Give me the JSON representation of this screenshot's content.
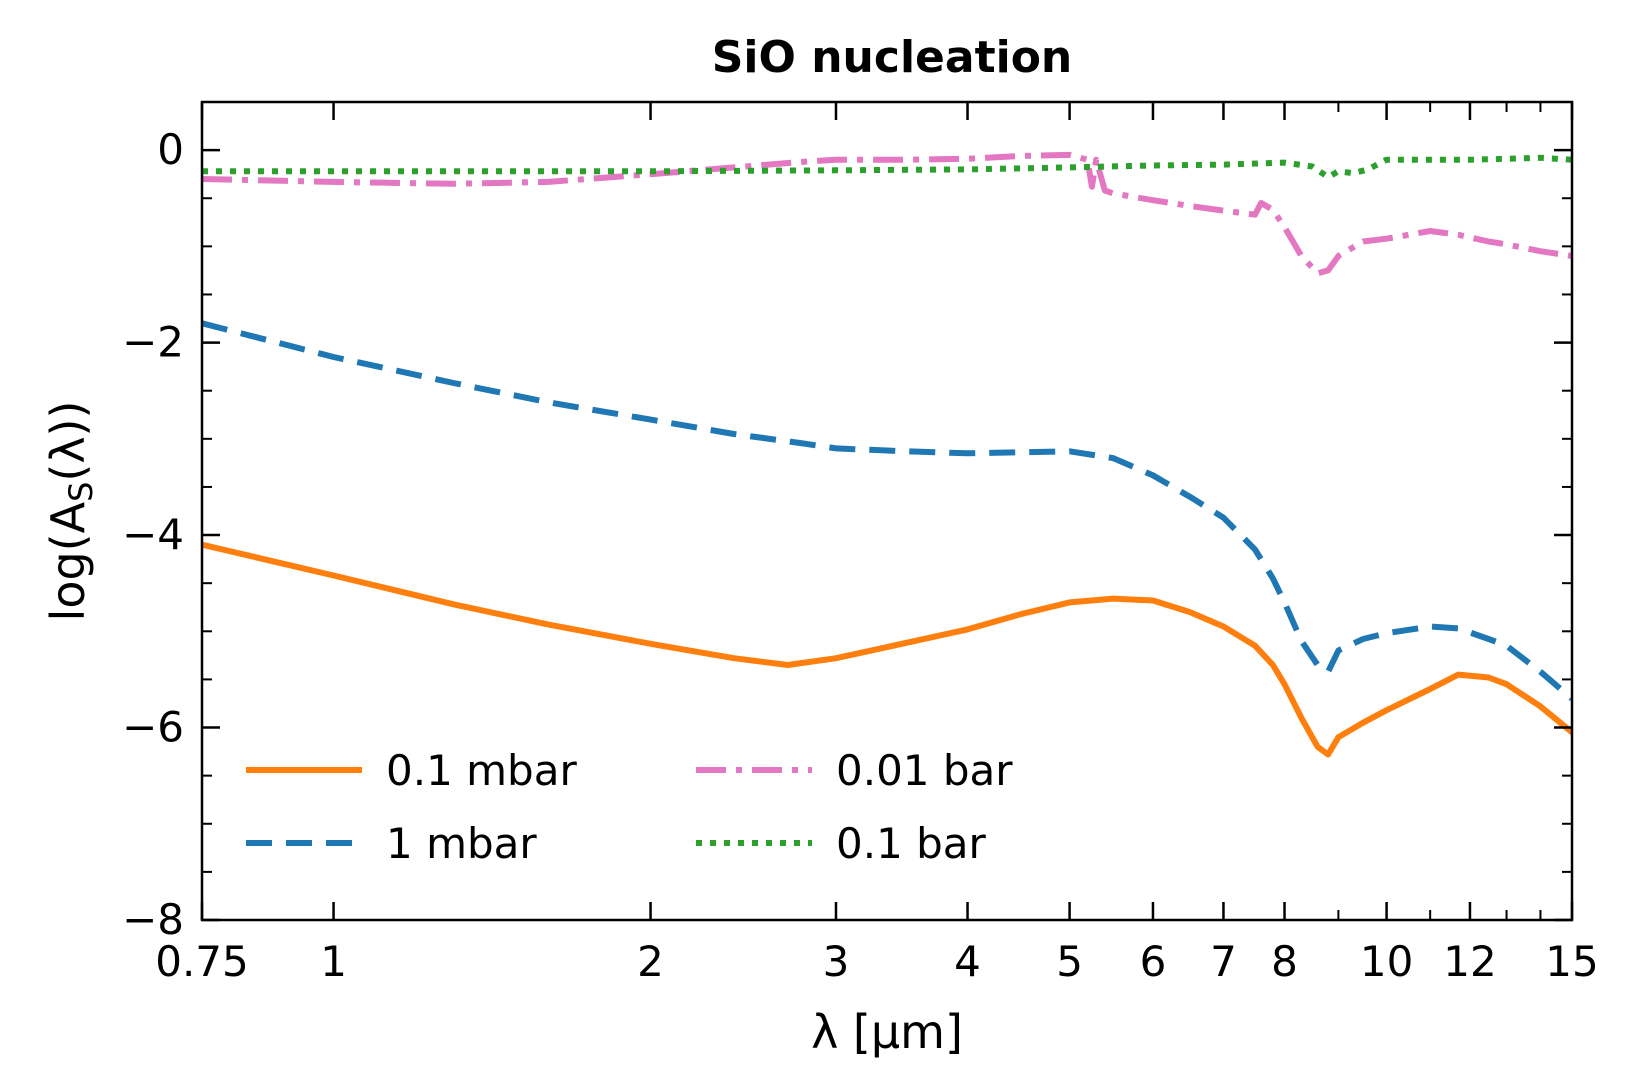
{
  "chart_data": {
    "type": "line",
    "title": "SiO nucleation",
    "xlabel": "λ [μm]",
    "ylabel": "log(A_S(λ))",
    "ylabel_parts": {
      "prefix": "log(A",
      "subscript": "S",
      "suffix": "(λ))"
    },
    "xscale": "log",
    "xlim": [
      0.75,
      15
    ],
    "ylim": [
      -8,
      0.5
    ],
    "x_ticks": [
      0.75,
      1,
      2,
      3,
      4,
      5,
      6,
      7,
      8,
      10,
      12,
      15
    ],
    "x_tick_labels": [
      "0.75",
      "1",
      "2",
      "3",
      "4",
      "5",
      "6",
      "7",
      "8",
      "10",
      "12",
      "15"
    ],
    "y_ticks": [
      -8,
      -6,
      -4,
      -2,
      0
    ],
    "y_tick_labels": [
      "−8",
      "−6",
      "−4",
      "−2",
      "0"
    ],
    "grid": false,
    "legend_position": "lower-left",
    "series": [
      {
        "name": "0.1 mbar",
        "color": "#ff7f0e",
        "style": "solid",
        "x": [
          0.75,
          1.0,
          1.3,
          1.6,
          2.0,
          2.4,
          2.7,
          3.0,
          3.5,
          4.0,
          4.5,
          5.0,
          5.5,
          6.0,
          6.5,
          7.0,
          7.5,
          7.8,
          8.0,
          8.3,
          8.6,
          8.8,
          9.0,
          9.5,
          10.0,
          11.0,
          11.7,
          12.5,
          13.0,
          14.0,
          15.0
        ],
        "values": [
          -4.1,
          -4.42,
          -4.72,
          -4.93,
          -5.13,
          -5.28,
          -5.35,
          -5.28,
          -5.12,
          -4.98,
          -4.82,
          -4.7,
          -4.66,
          -4.68,
          -4.8,
          -4.95,
          -5.15,
          -5.35,
          -5.55,
          -5.9,
          -6.2,
          -6.28,
          -6.1,
          -5.95,
          -5.82,
          -5.6,
          -5.45,
          -5.48,
          -5.55,
          -5.78,
          -6.05
        ]
      },
      {
        "name": "1 mbar",
        "color": "#1f77b4",
        "style": "dashed",
        "x": [
          0.75,
          1.0,
          1.3,
          1.6,
          2.0,
          2.4,
          2.8,
          3.0,
          3.5,
          4.0,
          4.5,
          5.0,
          5.5,
          6.0,
          6.5,
          7.0,
          7.5,
          7.8,
          8.0,
          8.3,
          8.6,
          8.8,
          9.0,
          9.5,
          10.0,
          11.0,
          11.7,
          12.5,
          13.0,
          14.0,
          15.0
        ],
        "values": [
          -1.8,
          -2.15,
          -2.42,
          -2.62,
          -2.8,
          -2.95,
          -3.05,
          -3.1,
          -3.13,
          -3.15,
          -3.14,
          -3.13,
          -3.2,
          -3.38,
          -3.6,
          -3.82,
          -4.15,
          -4.45,
          -4.7,
          -5.1,
          -5.35,
          -5.42,
          -5.2,
          -5.08,
          -5.02,
          -4.95,
          -4.97,
          -5.08,
          -5.15,
          -5.42,
          -5.7
        ]
      },
      {
        "name": "0.01 bar",
        "color": "#e377c2",
        "style": "dashdot",
        "x": [
          0.75,
          1.0,
          1.3,
          1.6,
          2.0,
          2.4,
          2.8,
          3.0,
          3.5,
          4.0,
          4.5,
          5.0,
          5.2,
          5.25,
          5.3,
          5.4,
          5.5,
          6.0,
          6.5,
          7.0,
          7.5,
          7.6,
          7.8,
          8.0,
          8.3,
          8.6,
          8.8,
          9.0,
          9.5,
          10.0,
          11.0,
          11.7,
          12.5,
          13.0,
          14.0,
          15.0
        ],
        "values": [
          -0.3,
          -0.33,
          -0.35,
          -0.33,
          -0.25,
          -0.18,
          -0.12,
          -0.1,
          -0.1,
          -0.09,
          -0.06,
          -0.05,
          -0.1,
          -0.38,
          -0.1,
          -0.42,
          -0.45,
          -0.52,
          -0.58,
          -0.63,
          -0.67,
          -0.55,
          -0.62,
          -0.8,
          -1.1,
          -1.28,
          -1.25,
          -1.1,
          -0.95,
          -0.92,
          -0.84,
          -0.88,
          -0.95,
          -0.98,
          -1.05,
          -1.1
        ]
      },
      {
        "name": "0.1 bar",
        "color": "#2ca02c",
        "style": "dotted",
        "x": [
          0.75,
          1.0,
          1.5,
          2.0,
          3.0,
          4.0,
          5.0,
          6.0,
          7.0,
          8.0,
          8.5,
          8.8,
          9.0,
          9.3,
          9.6,
          10.0,
          11.0,
          12.0,
          13.0,
          14.0,
          15.0
        ],
        "values": [
          -0.22,
          -0.22,
          -0.22,
          -0.22,
          -0.21,
          -0.2,
          -0.18,
          -0.16,
          -0.15,
          -0.13,
          -0.17,
          -0.28,
          -0.22,
          -0.24,
          -0.2,
          -0.1,
          -0.1,
          -0.1,
          -0.09,
          -0.08,
          -0.1
        ]
      }
    ]
  }
}
